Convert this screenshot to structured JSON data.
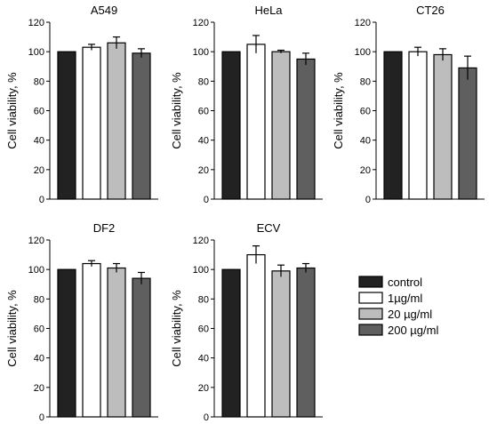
{
  "chart_data": [
    {
      "type": "bar",
      "title": "A549",
      "ylabel": "Cell viability, %",
      "ylim": [
        0,
        120
      ],
      "yticks": [
        0,
        20,
        40,
        60,
        80,
        100,
        120
      ],
      "categories": [
        "control",
        "1µg/ml",
        "20 µg/ml",
        "200 µg/ml"
      ],
      "values": [
        100,
        103,
        106,
        99
      ],
      "errors": [
        0,
        2,
        4,
        3
      ]
    },
    {
      "type": "bar",
      "title": "HeLa",
      "ylabel": "Cell viability, %",
      "ylim": [
        0,
        120
      ],
      "yticks": [
        0,
        20,
        40,
        60,
        80,
        100,
        120
      ],
      "categories": [
        "control",
        "1µg/ml",
        "20 µg/ml",
        "200 µg/ml"
      ],
      "values": [
        100,
        105,
        100,
        95
      ],
      "errors": [
        0,
        6,
        1,
        4
      ]
    },
    {
      "type": "bar",
      "title": "CT26",
      "ylabel": "Cell viability, %",
      "ylim": [
        0,
        120
      ],
      "yticks": [
        0,
        20,
        40,
        60,
        80,
        100,
        120
      ],
      "categories": [
        "control",
        "1µg/ml",
        "20 µg/ml",
        "200 µg/ml"
      ],
      "values": [
        100,
        100,
        98,
        89
      ],
      "errors": [
        0,
        3,
        4,
        8
      ]
    },
    {
      "type": "bar",
      "title": "DF2",
      "ylabel": "Cell viability, %",
      "ylim": [
        0,
        120
      ],
      "yticks": [
        0,
        20,
        40,
        60,
        80,
        100,
        120
      ],
      "categories": [
        "control",
        "1µg/ml",
        "20 µg/ml",
        "200 µg/ml"
      ],
      "values": [
        100,
        104,
        101,
        94
      ],
      "errors": [
        0,
        2,
        3,
        4
      ]
    },
    {
      "type": "bar",
      "title": "ECV",
      "ylabel": "Cell viability, %",
      "ylim": [
        0,
        120
      ],
      "yticks": [
        0,
        20,
        40,
        60,
        80,
        100,
        120
      ],
      "categories": [
        "control",
        "1µg/ml",
        "20 µg/ml",
        "200 µg/ml"
      ],
      "values": [
        100,
        110,
        99,
        101
      ],
      "errors": [
        0,
        6,
        4,
        3
      ]
    }
  ],
  "legend": {
    "placement": "bottom-right",
    "entries": [
      {
        "label": "control",
        "color": "#222222"
      },
      {
        "label": "1µg/ml",
        "color": "#ffffff"
      },
      {
        "label": "20 µg/ml",
        "color": "#bdbdbd"
      },
      {
        "label": "200 µg/ml",
        "color": "#5f5f5f"
      }
    ]
  }
}
